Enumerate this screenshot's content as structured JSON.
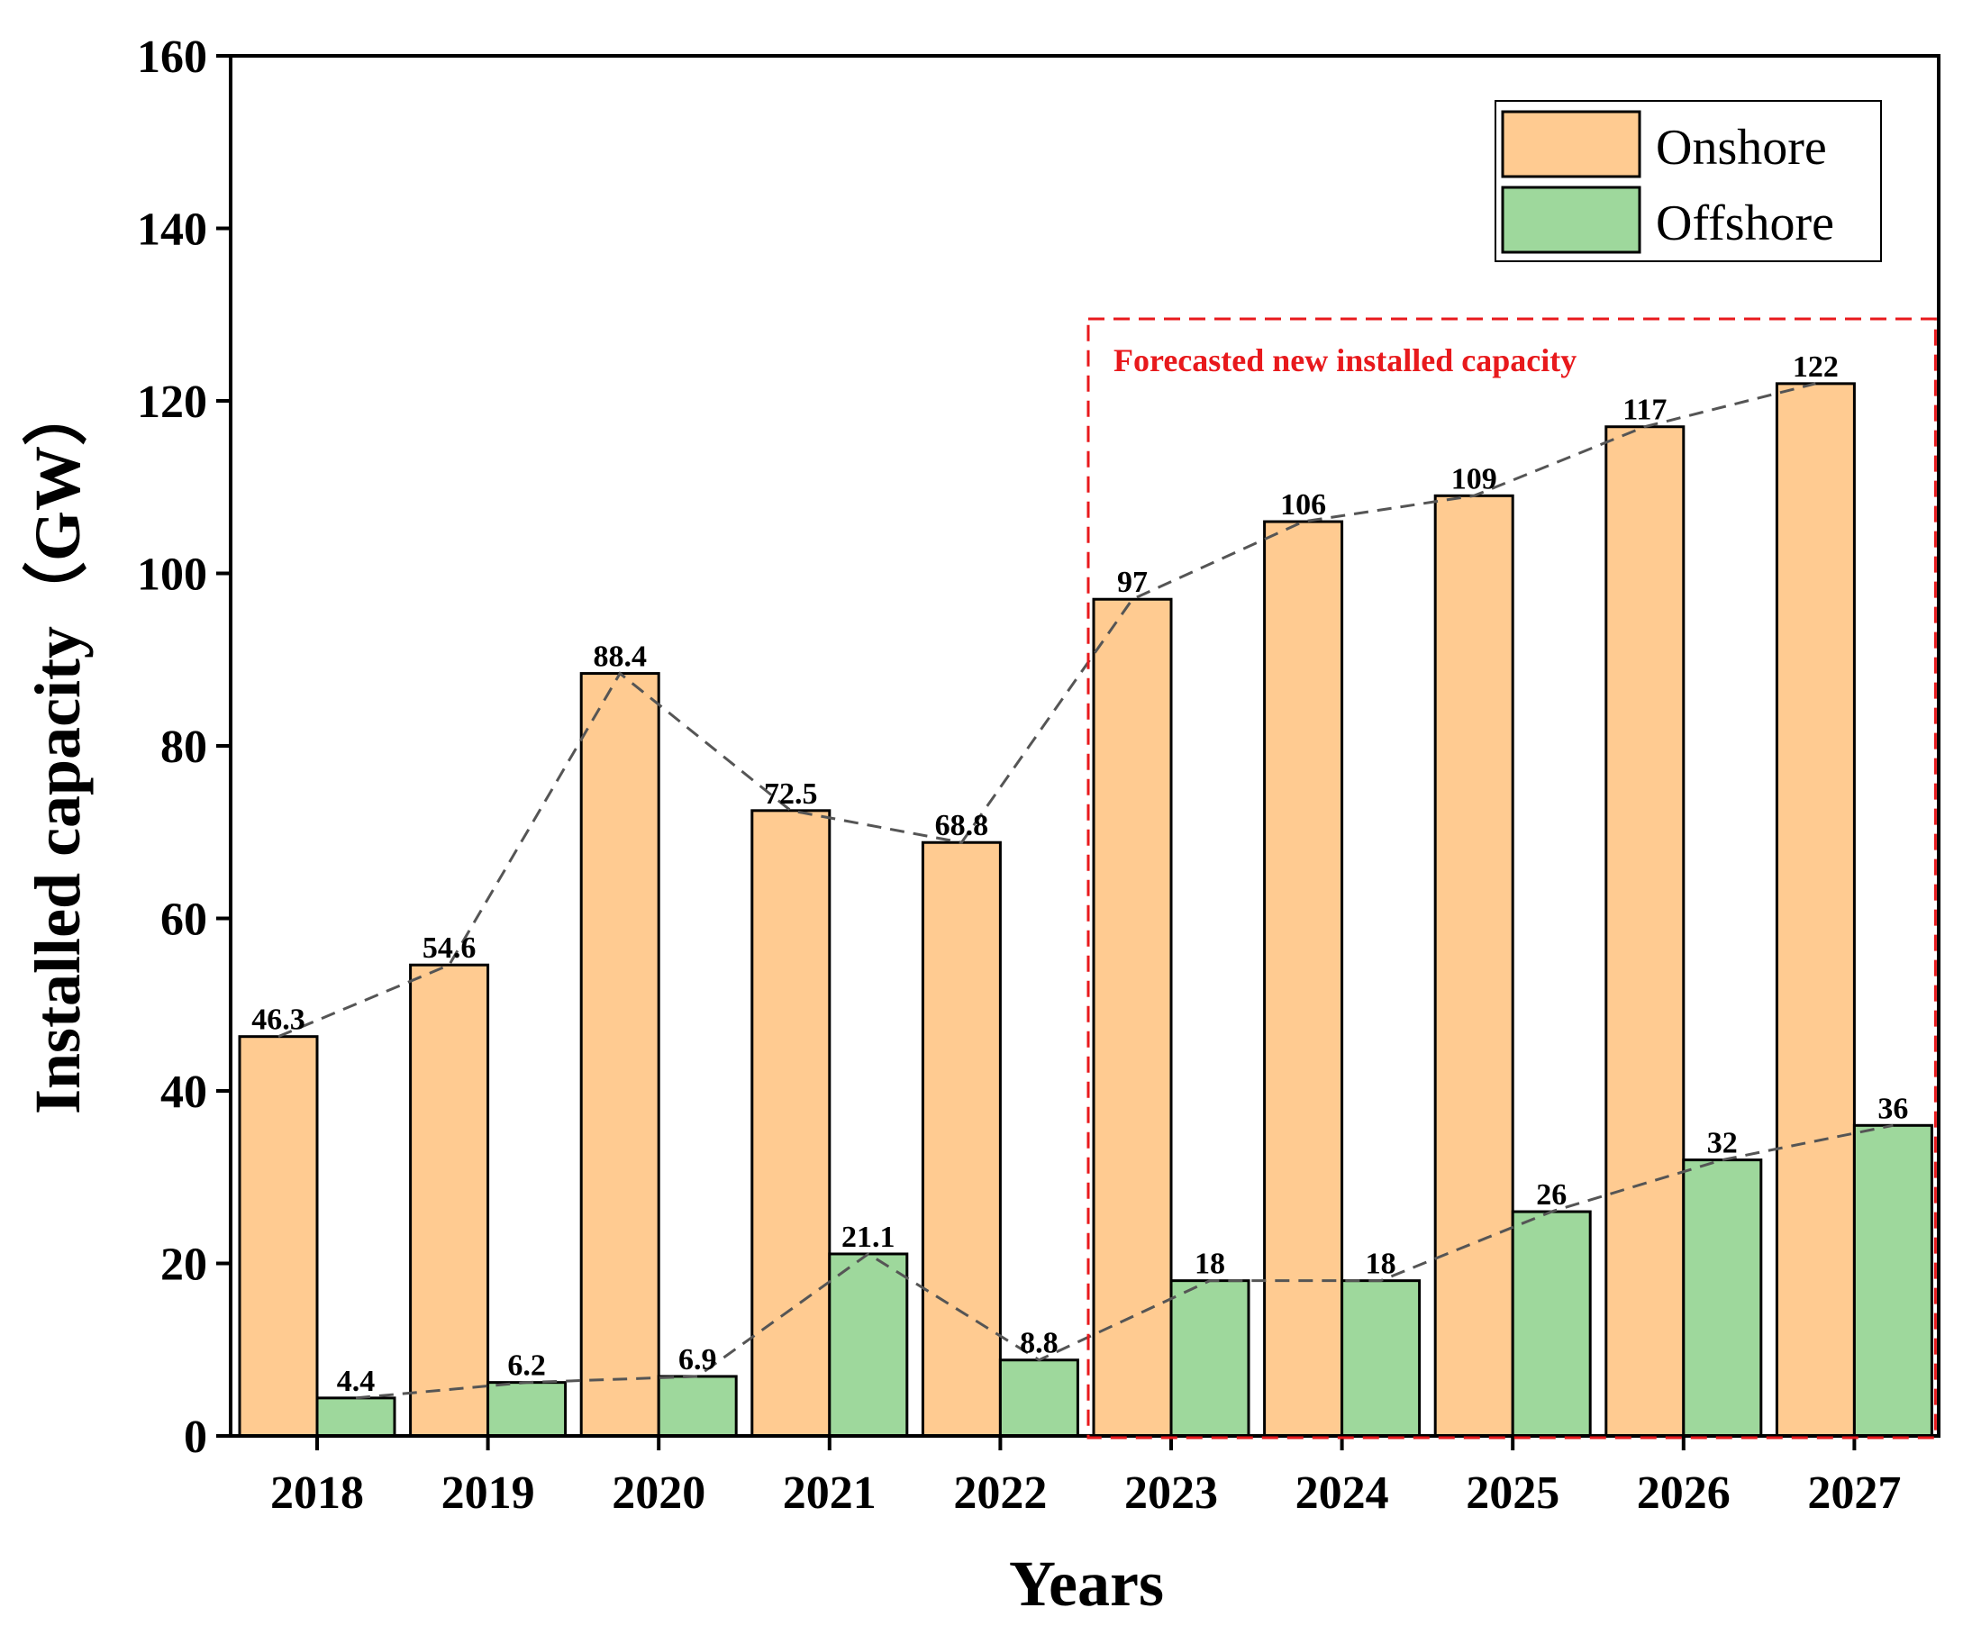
{
  "chart_data": {
    "type": "bar",
    "title": "",
    "xlabel": "Years",
    "ylabel": "Installed capacity（GW）",
    "ylim": [
      0,
      160
    ],
    "yticks": [
      0,
      20,
      40,
      60,
      80,
      100,
      120,
      140,
      160
    ],
    "categories": [
      "2018",
      "2019",
      "2020",
      "2021",
      "2022",
      "2023",
      "2024",
      "2025",
      "2026",
      "2027"
    ],
    "series": [
      {
        "name": "Onshore",
        "color": "#FFCB91",
        "values": [
          46.3,
          54.6,
          88.4,
          72.5,
          68.8,
          97,
          106,
          109,
          117,
          122
        ],
        "labels": [
          "46.3",
          "54.6",
          "88.4",
          "72.5",
          "68.8",
          "97",
          "106",
          "109",
          "117",
          "122"
        ]
      },
      {
        "name": "Offshore",
        "color": "#9ED89C",
        "values": [
          4.4,
          6.2,
          6.9,
          21.1,
          8.8,
          18,
          18,
          26,
          32,
          36
        ],
        "labels": [
          "4.4",
          "6.2",
          "6.9",
          "21.1",
          "8.8",
          "18",
          "18",
          "26",
          "32",
          "36"
        ]
      }
    ],
    "trend_lines": {
      "style": "dashed",
      "color": "#555555"
    },
    "legend": {
      "position": "top-right"
    },
    "annotation": {
      "text": "Forecasted new installed capacity",
      "color": "#E8191C",
      "covers_categories": [
        "2023",
        "2024",
        "2025",
        "2026",
        "2027"
      ]
    },
    "grid": false
  }
}
